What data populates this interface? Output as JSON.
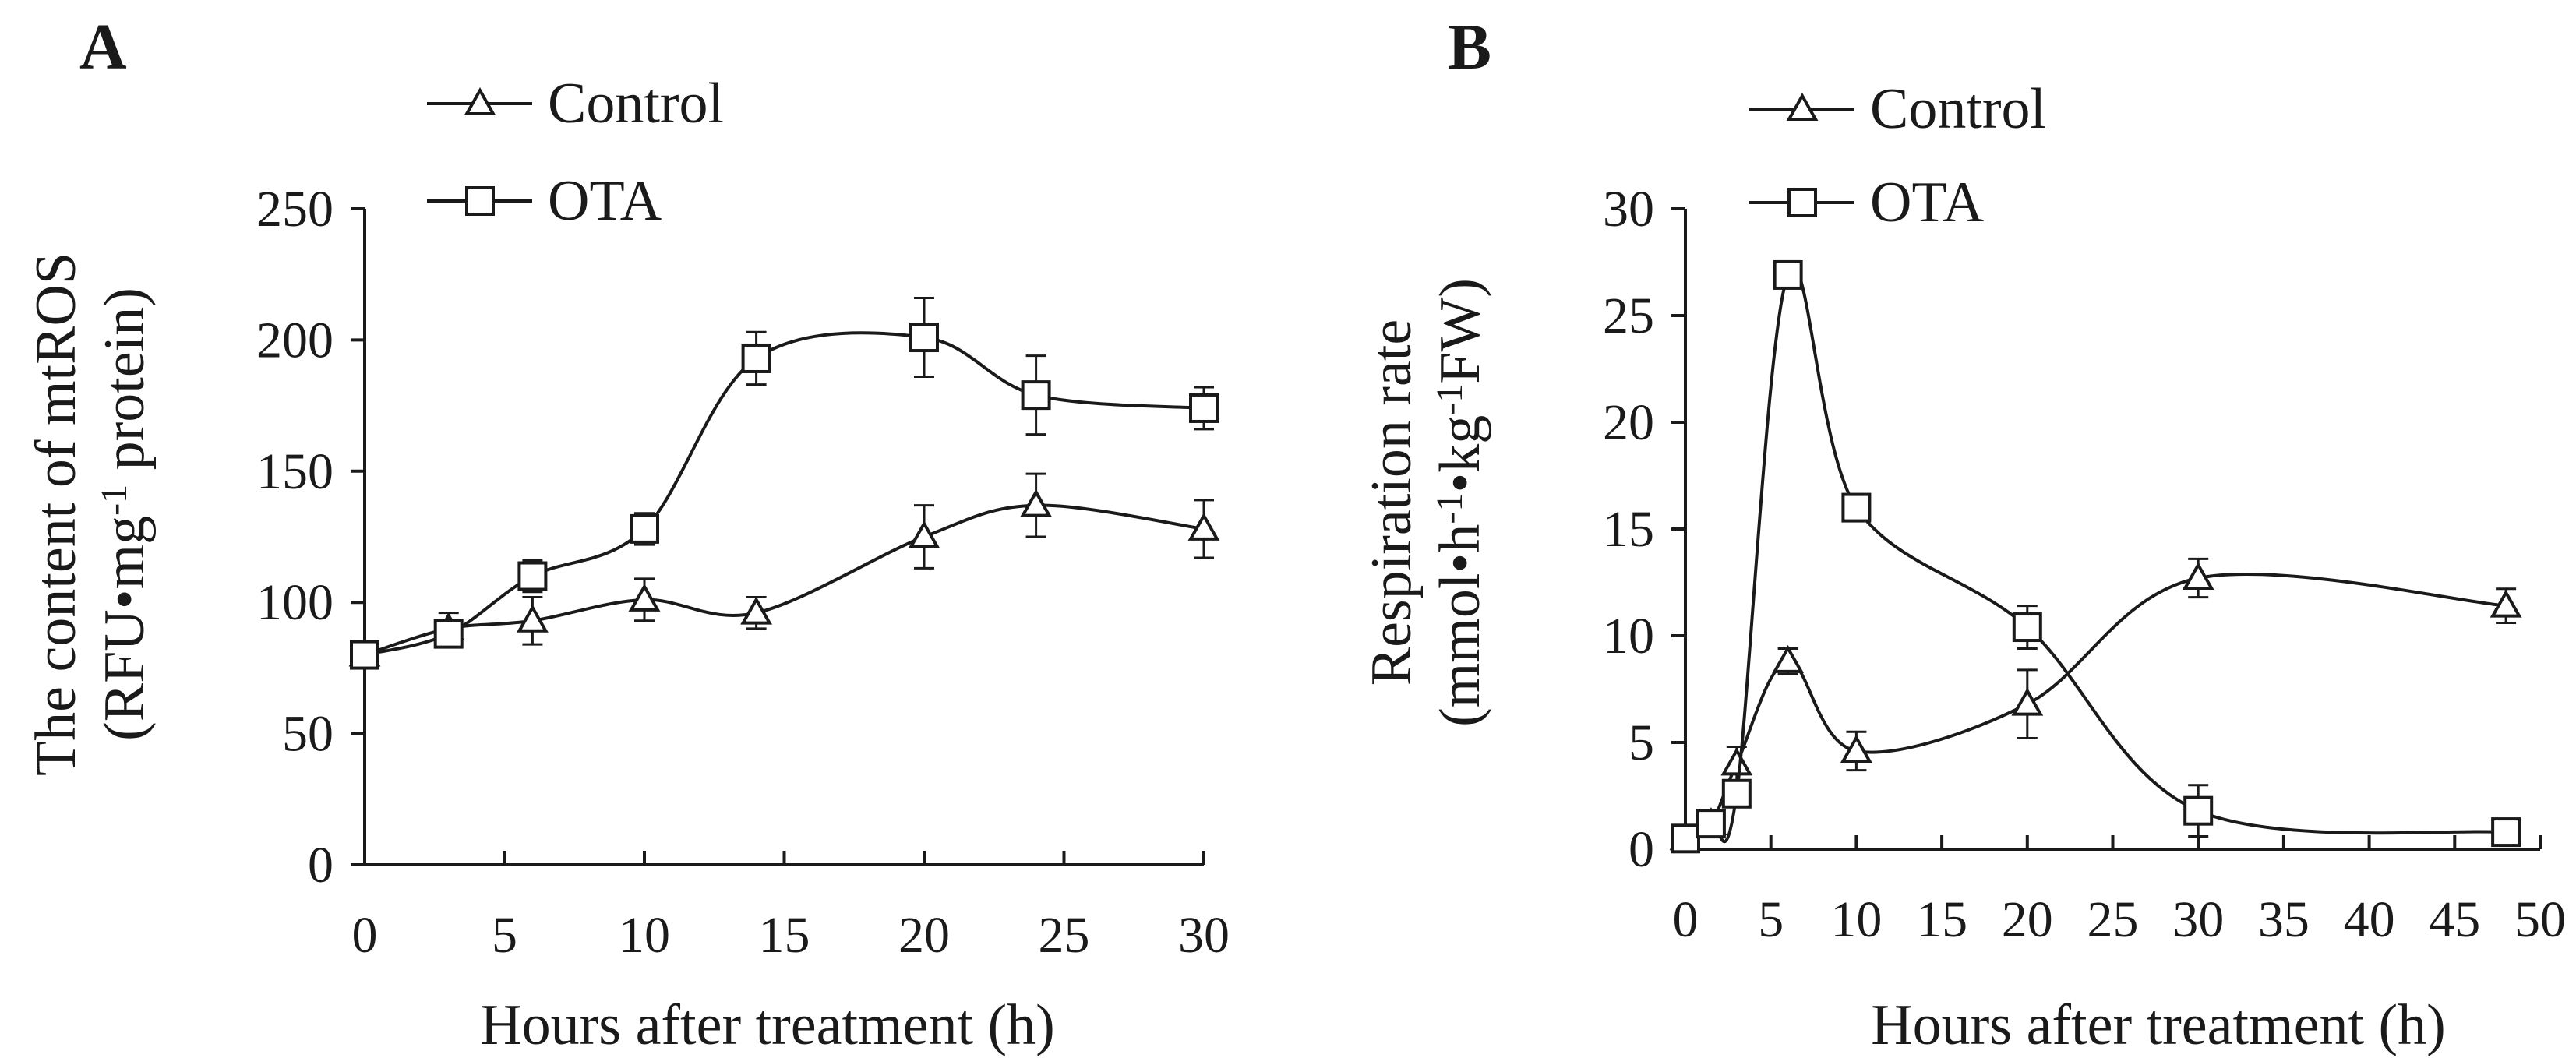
{
  "colors": {
    "ink": "#1a1a1a",
    "background": "#ffffff"
  },
  "chart_data": [
    {
      "panel": "A",
      "type": "line",
      "xlabel": "Hours after treatment (h)",
      "ylabel_line1": "The content of mtROS",
      "ylabel_line2_pre": "(RFU•mg",
      "ylabel_line2_sup": "-1",
      "ylabel_line2_post": " protein)",
      "xlim": [
        0,
        30
      ],
      "ylim": [
        0,
        250
      ],
      "xticks": [
        0,
        5,
        10,
        15,
        20,
        25,
        30
      ],
      "yticks": [
        0,
        50,
        100,
        150,
        200,
        250
      ],
      "legend": [
        "Control",
        "OTA"
      ],
      "series": [
        {
          "name": "Control",
          "marker": "triangle",
          "x": [
            0,
            3,
            6,
            10,
            14,
            20,
            24,
            30
          ],
          "y": [
            80,
            90,
            93,
            101,
            96,
            125,
            137,
            128
          ],
          "err": [
            5,
            6,
            9,
            8,
            6,
            12,
            12,
            11
          ]
        },
        {
          "name": "OTA",
          "marker": "square",
          "x": [
            0,
            3,
            6,
            10,
            14,
            20,
            24,
            30
          ],
          "y": [
            80,
            88,
            110,
            128,
            193,
            201,
            179,
            174
          ],
          "err": [
            5,
            5,
            6,
            6,
            10,
            15,
            15,
            8
          ]
        }
      ]
    },
    {
      "panel": "B",
      "type": "line",
      "xlabel": "Hours after treatment (h)",
      "ylabel_line1": "Respiration rate",
      "ylabel_line2_pre": "(mmol•h",
      "ylabel_line2_sup": "-1",
      "ylabel_line2_mid": "•kg",
      "ylabel_line2_sup2": "-1",
      "ylabel_line2_post": "FW)",
      "xlim": [
        0,
        50
      ],
      "ylim": [
        0,
        30
      ],
      "xticks": [
        0,
        5,
        10,
        15,
        20,
        25,
        30,
        35,
        40,
        45,
        50
      ],
      "yticks": [
        0,
        5,
        10,
        15,
        20,
        25,
        30
      ],
      "legend": [
        "Control",
        "OTA"
      ],
      "series": [
        {
          "name": "Control",
          "marker": "triangle",
          "x": [
            0,
            1.5,
            3,
            6,
            10,
            20,
            30,
            48
          ],
          "y": [
            0.5,
            1.2,
            4,
            8.8,
            4.6,
            6.8,
            12.7,
            11.4
          ],
          "err": [
            0.2,
            0.3,
            0.8,
            0.6,
            0.9,
            1.6,
            0.9,
            0.8
          ]
        },
        {
          "name": "OTA",
          "marker": "square",
          "x": [
            0,
            1.5,
            3,
            6,
            10,
            20,
            30,
            48
          ],
          "y": [
            0.5,
            1.2,
            2.6,
            26.9,
            16,
            10.4,
            1.8,
            0.8
          ],
          "err": [
            0.2,
            0.3,
            0.5,
            0.5,
            0.5,
            1,
            1.2,
            0.3
          ]
        }
      ]
    }
  ]
}
